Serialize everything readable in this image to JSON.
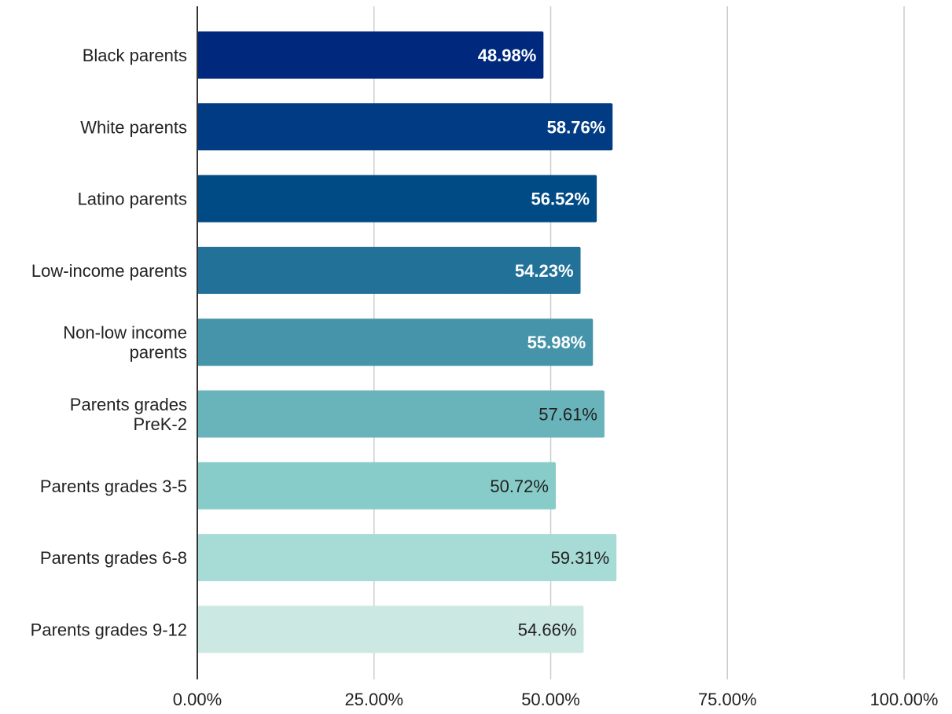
{
  "chart_data": {
    "type": "bar",
    "orientation": "horizontal",
    "title": "",
    "xlabel": "",
    "ylabel": "",
    "categories": [
      "Black parents",
      "White parents",
      "Latino parents",
      "Low-income parents",
      "Non-low income parents",
      "Parents grades PreK-2",
      "Parents grades 3-5",
      "Parents grades 6-8",
      "Parents grades 9-12"
    ],
    "values": [
      48.98,
      58.76,
      56.52,
      54.23,
      55.98,
      57.61,
      50.72,
      59.31,
      54.66
    ],
    "value_labels": [
      "48.98%",
      "58.76%",
      "56.52%",
      "54.23%",
      "55.98%",
      "57.61%",
      "50.72%",
      "59.31%",
      "54.66%"
    ],
    "colors": [
      "#00287d",
      "#003b84",
      "#004b86",
      "#227198",
      "#4594aa",
      "#69b3bb",
      "#87ccc8",
      "#a7dbd5",
      "#cce8e2"
    ],
    "label_colors": [
      "#ffffff",
      "#ffffff",
      "#ffffff",
      "#ffffff",
      "#ffffff",
      "#222222",
      "#222222",
      "#222222",
      "#222222"
    ],
    "xlim": [
      0,
      100
    ],
    "xticks": [
      0,
      25,
      50,
      75,
      100
    ],
    "xtick_labels": [
      "0.00%",
      "25.00%",
      "50.00%",
      "75.00%",
      "100.00%"
    ],
    "grid": true,
    "legend": "none"
  }
}
